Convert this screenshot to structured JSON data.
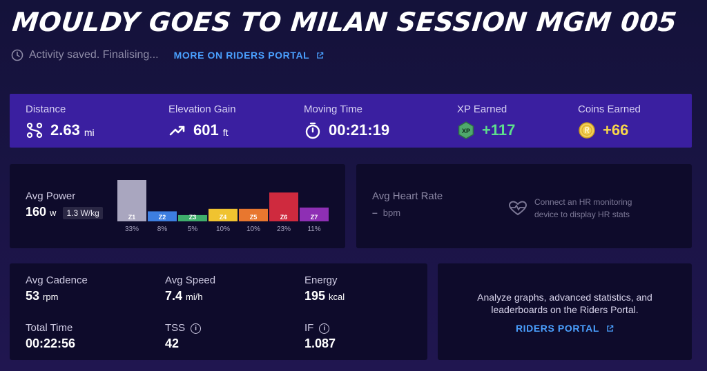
{
  "title": "MOULDY GOES TO MILAN SESSION MGM 005",
  "status": {
    "text": "Activity saved. Finalising...",
    "link_label": "MORE ON RIDERS PORTAL"
  },
  "summary": {
    "distance": {
      "label": "Distance",
      "value": "2.63",
      "unit": "mi"
    },
    "elevation": {
      "label": "Elevation Gain",
      "value": "601",
      "unit": "ft"
    },
    "moving_time": {
      "label": "Moving Time",
      "value": "00:21:19"
    },
    "xp": {
      "label": "XP Earned",
      "value": "+117",
      "badge": "XP"
    },
    "coins": {
      "label": "Coins Earned",
      "value": "+66"
    }
  },
  "power": {
    "label": "Avg Power",
    "value": "160",
    "unit": "w",
    "wkg": "1.3 W/kg"
  },
  "chart_data": {
    "type": "bar",
    "categories": [
      "Z1",
      "Z2",
      "Z3",
      "Z4",
      "Z5",
      "Z6",
      "Z7"
    ],
    "values": [
      33,
      8,
      5,
      10,
      10,
      23,
      11
    ],
    "value_labels": [
      "33%",
      "8%",
      "5%",
      "10%",
      "10%",
      "23%",
      "11%"
    ],
    "colors": [
      "#a9a6bf",
      "#3d7ee0",
      "#3fae6c",
      "#f0c330",
      "#e8772f",
      "#cf2a3e",
      "#8e2fb4"
    ],
    "title": "",
    "xlabel": "",
    "ylabel": ""
  },
  "heart_rate": {
    "label": "Avg Heart Rate",
    "value": "–",
    "unit": "bpm",
    "connect_line1": "Connect an HR monitoring",
    "connect_line2": "device to display HR stats"
  },
  "stats": {
    "cadence": {
      "label": "Avg Cadence",
      "value": "53",
      "unit": "rpm"
    },
    "speed": {
      "label": "Avg Speed",
      "value": "7.4",
      "unit": "mi/h"
    },
    "energy": {
      "label": "Energy",
      "value": "195",
      "unit": "kcal"
    },
    "total_time": {
      "label": "Total Time",
      "value": "00:22:56"
    },
    "tss": {
      "label": "TSS",
      "value": "42"
    },
    "if": {
      "label": "IF",
      "value": "1.087"
    }
  },
  "promo": {
    "line1": "Analyze graphs, advanced statistics, and",
    "line2": "leaderboards on the Riders Portal.",
    "link_label": "RIDERS PORTAL"
  }
}
